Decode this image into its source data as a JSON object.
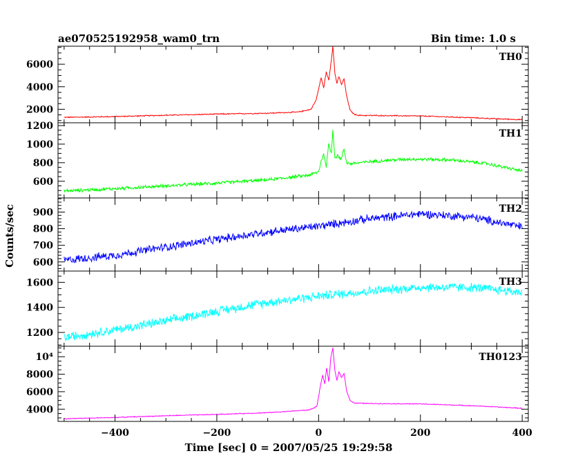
{
  "header": {
    "title": "ae070525192958_wam0_trn",
    "bin_time": "Bin time: 1.0 s"
  },
  "axes": {
    "xlabel": "Time [sec] 0 = 2007/05/25 19:29:58",
    "ylabel": "Counts/sec"
  },
  "chart_data": {
    "type": "line",
    "title": "ae070525192958_wam0_trn",
    "xlabel": "Time [sec] 0 = 2007/05/25 19:29:58",
    "ylabel": "Counts/sec",
    "xlim": [
      -512,
      412
    ],
    "x_ticks": [
      -400,
      -200,
      0,
      200,
      400
    ],
    "grid": false,
    "panels": [
      {
        "name": "TH0",
        "color": "#ff0000",
        "ylim": [
          800,
          7600
        ],
        "y_ticks": [
          2000,
          4000,
          6000
        ],
        "y_tick_labels": [
          "2000",
          "4000",
          "6000"
        ],
        "noise": 60,
        "points": [
          [
            -500,
            1280
          ],
          [
            -400,
            1350
          ],
          [
            -300,
            1470
          ],
          [
            -200,
            1570
          ],
          [
            -100,
            1650
          ],
          [
            -40,
            1750
          ],
          [
            -15,
            2000
          ],
          [
            -5,
            2800
          ],
          [
            0,
            3800
          ],
          [
            5,
            4800
          ],
          [
            10,
            3900
          ],
          [
            15,
            5300
          ],
          [
            20,
            4600
          ],
          [
            25,
            6400
          ],
          [
            28,
            7600
          ],
          [
            32,
            5200
          ],
          [
            36,
            4300
          ],
          [
            40,
            4900
          ],
          [
            45,
            4200
          ],
          [
            50,
            4700
          ],
          [
            55,
            3200
          ],
          [
            62,
            1900
          ],
          [
            70,
            1550
          ],
          [
            80,
            1450
          ],
          [
            100,
            1450
          ],
          [
            200,
            1400
          ],
          [
            300,
            1250
          ],
          [
            350,
            1150
          ],
          [
            400,
            1080
          ]
        ]
      },
      {
        "name": "TH1",
        "color": "#00ff00",
        "ylim": [
          420,
          1230
        ],
        "y_ticks": [
          600,
          800,
          1000,
          1200
        ],
        "y_tick_labels": [
          "600",
          "800",
          "1000",
          "1200"
        ],
        "noise": 22,
        "points": [
          [
            -500,
            495
          ],
          [
            -400,
            520
          ],
          [
            -300,
            550
          ],
          [
            -200,
            580
          ],
          [
            -100,
            615
          ],
          [
            -20,
            665
          ],
          [
            0,
            700
          ],
          [
            5,
            820
          ],
          [
            10,
            890
          ],
          [
            15,
            760
          ],
          [
            20,
            1000
          ],
          [
            25,
            900
          ],
          [
            28,
            1160
          ],
          [
            32,
            850
          ],
          [
            38,
            880
          ],
          [
            44,
            830
          ],
          [
            50,
            950
          ],
          [
            55,
            800
          ],
          [
            62,
            790
          ],
          [
            80,
            800
          ],
          [
            120,
            820
          ],
          [
            180,
            840
          ],
          [
            260,
            830
          ],
          [
            330,
            790
          ],
          [
            400,
            710
          ]
        ]
      },
      {
        "name": "TH2",
        "color": "#0000ff",
        "ylim": [
          545,
          985
        ],
        "y_ticks": [
          600,
          700,
          800,
          900
        ],
        "y_tick_labels": [
          "600",
          "700",
          "800",
          "900"
        ],
        "noise": 30,
        "points": [
          [
            -500,
            610
          ],
          [
            -400,
            640
          ],
          [
            -300,
            690
          ],
          [
            -200,
            735
          ],
          [
            -100,
            780
          ],
          [
            0,
            815
          ],
          [
            100,
            860
          ],
          [
            200,
            890
          ],
          [
            300,
            870
          ],
          [
            400,
            810
          ]
        ]
      },
      {
        "name": "TH3",
        "color": "#00ffff",
        "ylim": [
          1090,
          1690
        ],
        "y_ticks": [
          1200,
          1400,
          1600
        ],
        "y_tick_labels": [
          "1200",
          "1400",
          "1600"
        ],
        "noise": 45,
        "points": [
          [
            -500,
            1160
          ],
          [
            -400,
            1220
          ],
          [
            -300,
            1290
          ],
          [
            -200,
            1370
          ],
          [
            -100,
            1440
          ],
          [
            0,
            1490
          ],
          [
            100,
            1530
          ],
          [
            200,
            1560
          ],
          [
            300,
            1560
          ],
          [
            400,
            1520
          ]
        ]
      },
      {
        "name": "TH0123",
        "color": "#ff00ff",
        "ylim": [
          2600,
          11200
        ],
        "y_ticks": [
          4000,
          6000,
          8000,
          10000
        ],
        "y_tick_labels": [
          "4000",
          "6000",
          "8000",
          "10⁴"
        ],
        "noise": 60,
        "points": [
          [
            -500,
            2900
          ],
          [
            -400,
            3050
          ],
          [
            -300,
            3250
          ],
          [
            -200,
            3400
          ],
          [
            -100,
            3600
          ],
          [
            -20,
            3900
          ],
          [
            -10,
            4100
          ],
          [
            -3,
            4400
          ],
          [
            3,
            6500
          ],
          [
            8,
            7900
          ],
          [
            12,
            6900
          ],
          [
            16,
            8700
          ],
          [
            20,
            7100
          ],
          [
            24,
            9900
          ],
          [
            28,
            11000
          ],
          [
            32,
            8400
          ],
          [
            36,
            7300
          ],
          [
            40,
            8300
          ],
          [
            45,
            7600
          ],
          [
            50,
            8100
          ],
          [
            55,
            6100
          ],
          [
            62,
            5000
          ],
          [
            70,
            4700
          ],
          [
            100,
            4650
          ],
          [
            200,
            4600
          ],
          [
            300,
            4400
          ],
          [
            400,
            4100
          ]
        ]
      }
    ]
  }
}
